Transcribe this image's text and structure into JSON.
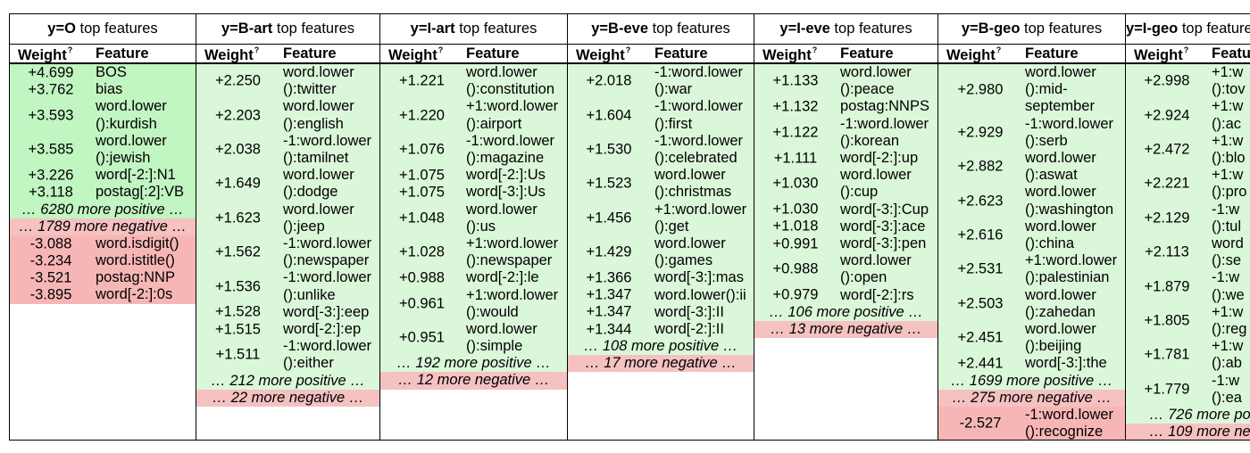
{
  "headers": {
    "weight": "Weight",
    "weight_sup": "?",
    "feature": "Feature"
  },
  "colors": {
    "pos_strong": "#c1f5c1",
    "pos_mid": "#daf7da",
    "pos_weak": "#e9f9e9",
    "neg_strong": "#f7b6b6",
    "neg_weak": "#f5c1c1"
  },
  "columns": [
    {
      "title_label": "y=O",
      "title_rest": " top features",
      "rows": [
        {
          "kind": "pos",
          "weight": "+4.699",
          "feature": [
            "BOS"
          ]
        },
        {
          "kind": "pos",
          "weight": "+3.762",
          "feature": [
            "bias"
          ]
        },
        {
          "kind": "pos",
          "weight": "+3.593",
          "feature": [
            "word.lower",
            "():kurdish"
          ]
        },
        {
          "kind": "pos",
          "weight": "+3.585",
          "feature": [
            "word.lower",
            "():jewish"
          ]
        },
        {
          "kind": "pos",
          "weight": "+3.226",
          "feature": [
            "word[-2:]:N1"
          ]
        },
        {
          "kind": "pos",
          "weight": "+3.118",
          "feature": [
            "postag[:2]:VB"
          ]
        },
        {
          "kind": "more-pos",
          "text": "… 6280 more positive …"
        },
        {
          "kind": "more-neg",
          "text": "… 1789 more negative …"
        },
        {
          "kind": "neg",
          "weight": "-3.088",
          "feature": [
            "word.isdigit()"
          ]
        },
        {
          "kind": "neg",
          "weight": "-3.234",
          "feature": [
            "word.istitle()"
          ]
        },
        {
          "kind": "neg",
          "weight": "-3.521",
          "feature": [
            "postag:NNP"
          ]
        },
        {
          "kind": "neg",
          "weight": "-3.895",
          "feature": [
            "word[-2:]:0s"
          ]
        }
      ]
    },
    {
      "title_label": "y=B-art",
      "title_rest": " top features",
      "rows": [
        {
          "kind": "pos",
          "weight": "+2.250",
          "feature": [
            "word.lower",
            "():twitter"
          ]
        },
        {
          "kind": "pos",
          "weight": "+2.203",
          "feature": [
            "word.lower",
            "():english"
          ]
        },
        {
          "kind": "pos",
          "weight": "+2.038",
          "feature": [
            "-1:word.lower",
            "():tamilnet"
          ]
        },
        {
          "kind": "pos",
          "weight": "+1.649",
          "feature": [
            "word.lower",
            "():dodge"
          ]
        },
        {
          "kind": "pos",
          "weight": "+1.623",
          "feature": [
            "word.lower",
            "():jeep"
          ]
        },
        {
          "kind": "pos",
          "weight": "+1.562",
          "feature": [
            "-1:word.lower",
            "():newspaper"
          ]
        },
        {
          "kind": "pos",
          "weight": "+1.536",
          "feature": [
            "-1:word.lower",
            "():unlike"
          ]
        },
        {
          "kind": "pos",
          "weight": "+1.528",
          "feature": [
            "word[-3:]:eep"
          ]
        },
        {
          "kind": "pos",
          "weight": "+1.515",
          "feature": [
            "word[-2:]:ep"
          ]
        },
        {
          "kind": "pos",
          "weight": "+1.511",
          "feature": [
            "-1:word.lower",
            "():either"
          ]
        },
        {
          "kind": "more-pos",
          "text": "… 212 more positive …"
        },
        {
          "kind": "more-neg",
          "text": "… 22 more negative …"
        }
      ]
    },
    {
      "title_label": "y=I-art",
      "title_rest": " top features",
      "rows": [
        {
          "kind": "pos",
          "weight": "+1.221",
          "feature": [
            "word.lower",
            "():constitution"
          ]
        },
        {
          "kind": "pos",
          "weight": "+1.220",
          "feature": [
            "+1:word.lower",
            "():airport"
          ]
        },
        {
          "kind": "pos",
          "weight": "+1.076",
          "feature": [
            "-1:word.lower",
            "():magazine"
          ]
        },
        {
          "kind": "pos",
          "weight": "+1.075",
          "feature": [
            "word[-2:]:Us"
          ]
        },
        {
          "kind": "pos",
          "weight": "+1.075",
          "feature": [
            "word[-3:]:Us"
          ]
        },
        {
          "kind": "pos",
          "weight": "+1.048",
          "feature": [
            "word.lower",
            "():us"
          ]
        },
        {
          "kind": "pos",
          "weight": "+1.028",
          "feature": [
            "+1:word.lower",
            "():newspaper"
          ]
        },
        {
          "kind": "pos",
          "weight": "+0.988",
          "feature": [
            "word[-2:]:le"
          ]
        },
        {
          "kind": "pos",
          "weight": "+0.961",
          "feature": [
            "+1:word.lower",
            "():would"
          ]
        },
        {
          "kind": "pos",
          "weight": "+0.951",
          "feature": [
            "word.lower",
            "():simple"
          ]
        },
        {
          "kind": "more-pos",
          "text": "… 192 more positive …"
        },
        {
          "kind": "more-neg",
          "text": "… 12 more negative …"
        }
      ]
    },
    {
      "title_label": "y=B-eve",
      "title_rest": " top features",
      "rows": [
        {
          "kind": "pos",
          "weight": "+2.018",
          "feature": [
            "-1:word.lower",
            "():war"
          ]
        },
        {
          "kind": "pos",
          "weight": "+1.604",
          "feature": [
            "-1:word.lower",
            "():first"
          ]
        },
        {
          "kind": "pos",
          "weight": "+1.530",
          "feature": [
            "-1:word.lower",
            "():celebrated"
          ]
        },
        {
          "kind": "pos",
          "weight": "+1.523",
          "feature": [
            "word.lower",
            "():christmas"
          ]
        },
        {
          "kind": "pos",
          "weight": "+1.456",
          "feature": [
            "+1:word.lower",
            "():get"
          ]
        },
        {
          "kind": "pos",
          "weight": "+1.429",
          "feature": [
            "word.lower",
            "():games"
          ]
        },
        {
          "kind": "pos",
          "weight": "+1.366",
          "feature": [
            "word[-3:]:mas"
          ]
        },
        {
          "kind": "pos",
          "weight": "+1.347",
          "feature": [
            "word.lower():ii"
          ]
        },
        {
          "kind": "pos",
          "weight": "+1.347",
          "feature": [
            "word[-3:]:II"
          ]
        },
        {
          "kind": "pos",
          "weight": "+1.344",
          "feature": [
            "word[-2:]:II"
          ]
        },
        {
          "kind": "more-pos",
          "text": "… 108 more positive …"
        },
        {
          "kind": "more-neg",
          "text": "… 17 more negative …"
        }
      ]
    },
    {
      "title_label": "y=I-eve",
      "title_rest": " top features",
      "rows": [
        {
          "kind": "pos",
          "weight": "+1.133",
          "feature": [
            "word.lower",
            "():peace"
          ]
        },
        {
          "kind": "pos",
          "weight": "+1.132",
          "feature": [
            "postag:NNPS"
          ]
        },
        {
          "kind": "pos",
          "weight": "+1.122",
          "feature": [
            "-1:word.lower",
            "():korean"
          ]
        },
        {
          "kind": "pos",
          "weight": "+1.111",
          "feature": [
            "word[-2:]:up"
          ]
        },
        {
          "kind": "pos",
          "weight": "+1.030",
          "feature": [
            "word.lower",
            "():cup"
          ]
        },
        {
          "kind": "pos",
          "weight": "+1.030",
          "feature": [
            "word[-3:]:Cup"
          ]
        },
        {
          "kind": "pos",
          "weight": "+1.018",
          "feature": [
            "word[-3:]:ace"
          ]
        },
        {
          "kind": "pos",
          "weight": "+0.991",
          "feature": [
            "word[-3:]:pen"
          ]
        },
        {
          "kind": "pos",
          "weight": "+0.988",
          "feature": [
            "word.lower",
            "():open"
          ]
        },
        {
          "kind": "pos",
          "weight": "+0.979",
          "feature": [
            "word[-2:]:rs"
          ]
        },
        {
          "kind": "more-pos",
          "text": "… 106 more positive …"
        },
        {
          "kind": "more-neg",
          "text": "… 13 more negative …"
        }
      ]
    },
    {
      "title_label": "y=B-geo",
      "title_rest": " top features",
      "rows": [
        {
          "kind": "pos",
          "weight": "+2.980",
          "feature": [
            "word.lower",
            "():mid-",
            "september"
          ]
        },
        {
          "kind": "pos",
          "weight": "+2.929",
          "feature": [
            "-1:word.lower",
            "():serb"
          ]
        },
        {
          "kind": "pos",
          "weight": "+2.882",
          "feature": [
            "word.lower",
            "():aswat"
          ]
        },
        {
          "kind": "pos",
          "weight": "+2.623",
          "feature": [
            "word.lower",
            "():washington"
          ]
        },
        {
          "kind": "pos",
          "weight": "+2.616",
          "feature": [
            "word.lower",
            "():china"
          ]
        },
        {
          "kind": "pos",
          "weight": "+2.531",
          "feature": [
            "+1:word.lower",
            "():palestinian"
          ]
        },
        {
          "kind": "pos",
          "weight": "+2.503",
          "feature": [
            "word.lower",
            "():zahedan"
          ]
        },
        {
          "kind": "pos",
          "weight": "+2.451",
          "feature": [
            "word.lower",
            "():beijing"
          ]
        },
        {
          "kind": "pos",
          "weight": "+2.441",
          "feature": [
            "word[-3:]:the"
          ]
        },
        {
          "kind": "more-pos",
          "text": "… 1699 more positive …"
        },
        {
          "kind": "more-neg",
          "text": "… 275 more negative …"
        },
        {
          "kind": "neg",
          "weight": "-2.527",
          "feature": [
            "-1:word.lower",
            "():recognize"
          ]
        }
      ]
    },
    {
      "title_label": "y=I-geo",
      "title_rest": " top features",
      "rows": [
        {
          "kind": "pos",
          "weight": "+2.998",
          "feature": [
            "+1:w",
            "():tov"
          ]
        },
        {
          "kind": "pos",
          "weight": "+2.924",
          "feature": [
            "+1:w",
            "():ac"
          ]
        },
        {
          "kind": "pos",
          "weight": "+2.472",
          "feature": [
            "+1:w",
            "():blo"
          ]
        },
        {
          "kind": "pos",
          "weight": "+2.221",
          "feature": [
            "+1:w",
            "():pro"
          ]
        },
        {
          "kind": "pos",
          "weight": "+2.129",
          "feature": [
            "-1:w",
            "():tul"
          ]
        },
        {
          "kind": "pos",
          "weight": "+2.113",
          "feature": [
            "word",
            "():se"
          ]
        },
        {
          "kind": "pos",
          "weight": "+1.879",
          "feature": [
            "-1:w",
            "():we"
          ]
        },
        {
          "kind": "pos",
          "weight": "+1.805",
          "feature": [
            "+1:w",
            "():reg"
          ]
        },
        {
          "kind": "pos",
          "weight": "+1.781",
          "feature": [
            "+1:w",
            "():ab"
          ]
        },
        {
          "kind": "pos",
          "weight": "+1.779",
          "feature": [
            "-1:w",
            "():ea"
          ]
        },
        {
          "kind": "more-pos",
          "text": "… 726 more pos"
        },
        {
          "kind": "more-neg",
          "text": "… 109 more ne"
        }
      ]
    }
  ]
}
